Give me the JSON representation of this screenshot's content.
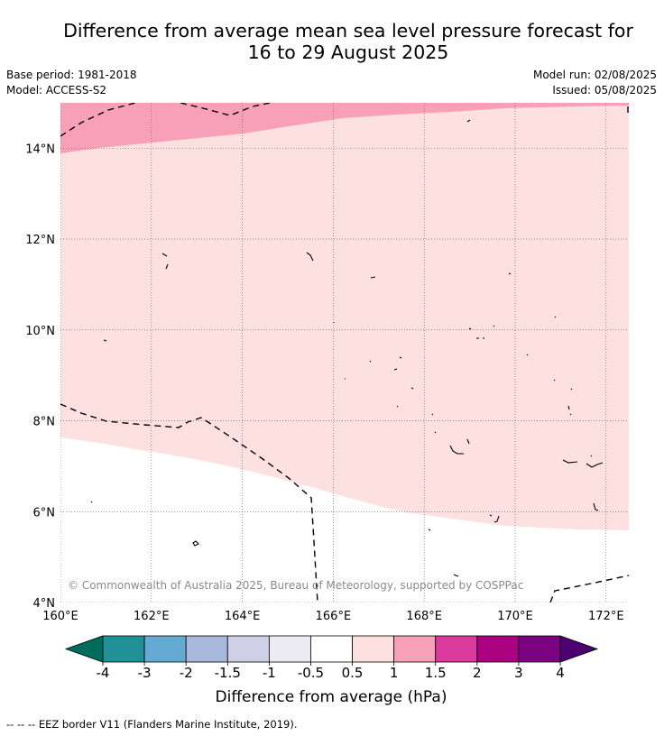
{
  "title": {
    "line1": "Difference from average mean sea level pressure forecast for",
    "line2": "16 to 29 August 2025"
  },
  "meta_left": {
    "base_period": "Base period: 1981-2018",
    "model": "Model: ACCESS-S2"
  },
  "meta_right": {
    "model_run": "Model run: 02/08/2025",
    "issued": "Issued: 05/08/2025"
  },
  "map": {
    "lat_ticks": [
      "14°N",
      "12°N",
      "10°N",
      "8°N",
      "6°N",
      "4°N"
    ],
    "lon_ticks": [
      "160°E",
      "162°E",
      "164°E",
      "166°E",
      "168°E",
      "170°E",
      "172°E"
    ],
    "extent": {
      "lon_min": 160,
      "lon_max": 172.5,
      "lat_min": 4,
      "lat_max": 15
    },
    "gridlines": true,
    "copyright": "© Commonwealth of Australia 2025, Bureau of Meteorology, supported by COSPPac",
    "regions": [
      {
        "range": "1 to 1.5 hPa",
        "color": "#f9a0b9"
      },
      {
        "range": "0.5 to 1 hPa",
        "color": "#fde0e0"
      },
      {
        "range": "-0.5 to 0.5 hPa",
        "color": "#ffffff"
      }
    ]
  },
  "colorbar": {
    "label": "Difference from average (hPa)",
    "tick_labels": [
      "-4",
      "-3",
      "-2",
      "-1.5",
      "-1",
      "-0.5",
      "0.5",
      "1",
      "1.5",
      "2",
      "3",
      "4"
    ],
    "colors": [
      "#006d5b",
      "#1f9197",
      "#64aad3",
      "#a7b9da",
      "#cfd0e6",
      "#ecebf1",
      "#ffffff",
      "#fde0e0",
      "#f9a0b9",
      "#dc3a9c",
      "#ab0282",
      "#7b0382",
      "#4d0070"
    ]
  },
  "footer": {
    "legend": "-- -- -- EEZ border V11 (Flanders Marine Institute, 2019)."
  }
}
